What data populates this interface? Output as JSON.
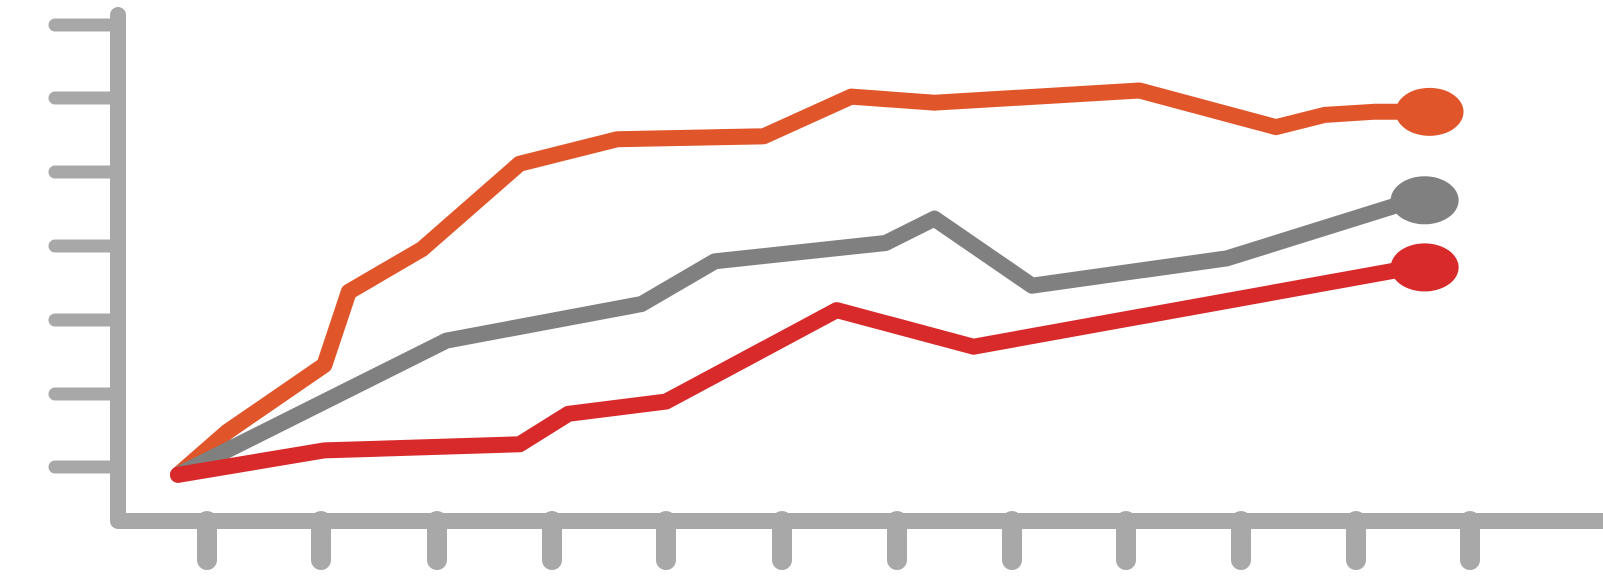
{
  "chart_data": {
    "type": "line",
    "title": "",
    "xlabel": "",
    "ylabel": "",
    "x": [
      0,
      1,
      2,
      3,
      4,
      5,
      6,
      7,
      8,
      9,
      10,
      11,
      12,
      13,
      14,
      15,
      16,
      17,
      18,
      19,
      20,
      21,
      22,
      23,
      24,
      25,
      26
    ],
    "xlim": [
      0,
      27.5
    ],
    "ylim": [
      0,
      7
    ],
    "x_tick_count": 12,
    "y_tick_count": 7,
    "grid": false,
    "legend": "none",
    "axis_color": "#a8a8a8",
    "end_markers": true,
    "series": [
      {
        "color": "#e0562a",
        "points": [
          [
            0,
            0.2
          ],
          [
            1,
            0.9
          ],
          [
            3,
            2.0
          ],
          [
            3.5,
            3.2
          ],
          [
            5,
            3.9
          ],
          [
            7,
            5.3
          ],
          [
            9,
            5.7
          ],
          [
            12,
            5.75
          ],
          [
            13.8,
            6.4
          ],
          [
            15.5,
            6.3
          ],
          [
            19.7,
            6.5
          ],
          [
            22.5,
            5.9
          ],
          [
            23.5,
            6.1
          ],
          [
            24.5,
            6.15
          ],
          [
            25,
            6.15
          ],
          [
            25.2,
            6.15
          ],
          [
            25.3,
            6.15
          ],
          [
            25.4,
            6.15
          ]
        ]
      },
      {
        "color": "#808080",
        "points": [
          [
            0,
            0.2
          ],
          [
            5.5,
            2.4
          ],
          [
            9.5,
            3.0
          ],
          [
            11,
            3.7
          ],
          [
            14.5,
            4.0
          ],
          [
            15.5,
            4.4
          ],
          [
            17.5,
            3.3
          ],
          [
            21.5,
            3.75
          ],
          [
            25.3,
            4.7
          ]
        ]
      },
      {
        "color": "#d82a2a",
        "points": [
          [
            0,
            0.2
          ],
          [
            3,
            0.6
          ],
          [
            7,
            0.7
          ],
          [
            8,
            1.2
          ],
          [
            10,
            1.4
          ],
          [
            13.5,
            2.9
          ],
          [
            16.3,
            2.3
          ],
          [
            25.3,
            3.6
          ]
        ]
      }
    ]
  }
}
